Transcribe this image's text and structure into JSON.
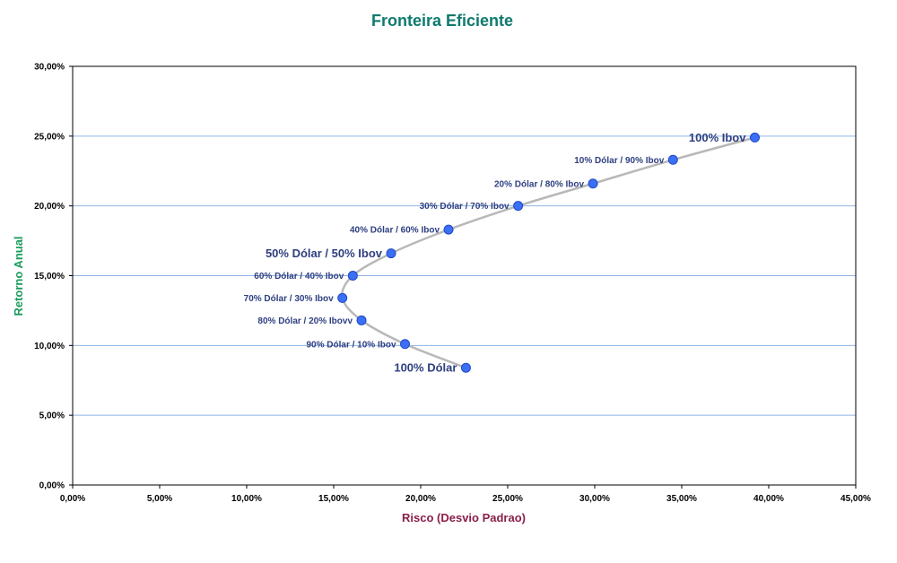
{
  "chart_data": {
    "type": "scatter",
    "title": "Fronteira Eficiente",
    "xlabel": "Risco (Desvio Padrao)",
    "ylabel": "Retorno Anual",
    "xlim": [
      0,
      45
    ],
    "ylim": [
      0,
      30
    ],
    "x_ticks": [
      0,
      5,
      10,
      15,
      20,
      25,
      30,
      35,
      40,
      45
    ],
    "y_ticks": [
      0,
      5,
      10,
      15,
      20,
      25,
      30
    ],
    "x_tick_labels": [
      "0,00%",
      "5,00%",
      "10,00%",
      "15,00%",
      "20,00%",
      "25,00%",
      "30,00%",
      "35,00%",
      "40,00%",
      "45,00%"
    ],
    "y_tick_labels": [
      "0,00%",
      "5,00%",
      "10,00%",
      "15,00%",
      "20,00%",
      "25,00%",
      "30,00%"
    ],
    "grid": "horizontal",
    "points": [
      {
        "label": "100% Dólar",
        "x": 22.6,
        "y": 8.4,
        "emphasis": true
      },
      {
        "label": "90% Dólar / 10% Ibov",
        "x": 19.1,
        "y": 10.1,
        "emphasis": false
      },
      {
        "label": "80% Dólar / 20% Ibovv",
        "x": 16.6,
        "y": 11.8,
        "emphasis": false
      },
      {
        "label": "70% Dólar / 30% Ibov",
        "x": 15.5,
        "y": 13.4,
        "emphasis": false
      },
      {
        "label": "60% Dólar / 40% Ibov",
        "x": 16.1,
        "y": 15.0,
        "emphasis": false
      },
      {
        "label": "50% Dólar / 50% Ibov",
        "x": 18.3,
        "y": 16.6,
        "emphasis": true
      },
      {
        "label": "40% Dólar / 60% Ibov",
        "x": 21.6,
        "y": 18.3,
        "emphasis": false
      },
      {
        "label": "30% Dólar / 70% Ibov",
        "x": 25.6,
        "y": 20.0,
        "emphasis": false
      },
      {
        "label": "20% Dólar / 80% Ibov",
        "x": 29.9,
        "y": 21.6,
        "emphasis": false
      },
      {
        "label": "10% Dólar / 90% Ibov",
        "x": 34.5,
        "y": 23.3,
        "emphasis": false
      },
      {
        "label": "100% Ibov",
        "x": 39.2,
        "y": 24.9,
        "emphasis": true
      }
    ],
    "colors": {
      "title": "#0e7a6e",
      "ylabel": "#1a9c5b",
      "xlabel": "#8a1f4a",
      "point": "#3b6ff5",
      "point_stroke": "#1f49c4",
      "curve": "#b8b8b8",
      "grid": "#8fb4e8",
      "point_label": "#2e3f80"
    }
  }
}
